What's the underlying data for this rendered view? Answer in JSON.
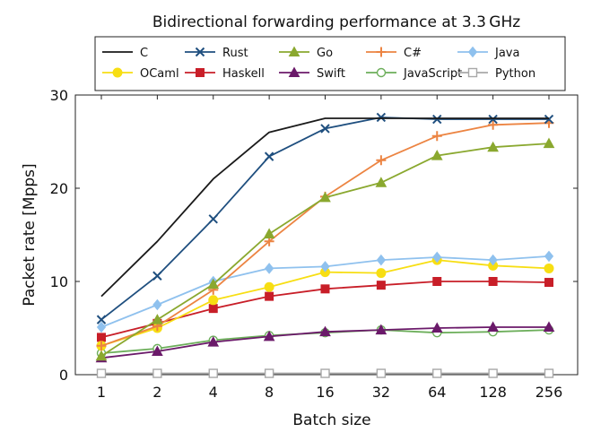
{
  "chart_data": {
    "type": "line",
    "title": "Bidirectional forwarding performance at 3.3 GHz",
    "xlabel": "Batch size",
    "ylabel": "Packet rate [Mpps]",
    "categories": [
      "1",
      "2",
      "4",
      "8",
      "16",
      "32",
      "64",
      "128",
      "256"
    ],
    "ylim": [
      0,
      30
    ],
    "yticks": [
      0,
      10,
      20,
      30
    ],
    "grid": false,
    "legend_position": "top",
    "series": [
      {
        "name": "C",
        "color": "#1a1a1a",
        "marker": "none",
        "values": [
          8.4,
          14.3,
          21.0,
          26.0,
          27.5,
          27.5,
          27.5,
          27.5,
          27.5
        ]
      },
      {
        "name": "Rust",
        "color": "#1f4f7f",
        "marker": "x",
        "values": [
          5.9,
          10.6,
          16.7,
          23.4,
          26.4,
          27.6,
          27.4,
          27.4,
          27.4
        ]
      },
      {
        "name": "Go",
        "color": "#8aa82f",
        "marker": "triangle-up",
        "values": [
          2.0,
          5.9,
          9.7,
          15.1,
          19.0,
          20.6,
          23.5,
          24.4,
          24.8
        ]
      },
      {
        "name": "C#",
        "color": "#ec8442",
        "marker": "plus",
        "values": [
          3.1,
          5.2,
          9.1,
          14.3,
          19.1,
          23.0,
          25.6,
          26.8,
          27.0
        ]
      },
      {
        "name": "Java",
        "color": "#8fc1ee",
        "marker": "diamond",
        "values": [
          5.1,
          7.5,
          10.0,
          11.4,
          11.6,
          12.3,
          12.6,
          12.3,
          12.7
        ]
      },
      {
        "name": "OCaml",
        "color": "#f7de13",
        "marker": "circle",
        "values": [
          3.1,
          5.0,
          8.0,
          9.4,
          11.0,
          10.9,
          12.3,
          11.7,
          11.4
        ]
      },
      {
        "name": "Haskell",
        "color": "#c81e28",
        "marker": "square",
        "values": [
          4.0,
          5.5,
          7.1,
          8.4,
          9.2,
          9.6,
          10.0,
          10.0,
          9.9
        ]
      },
      {
        "name": "Swift",
        "color": "#6b1a6a",
        "marker": "triangle-up",
        "values": [
          1.8,
          2.5,
          3.5,
          4.1,
          4.6,
          4.8,
          5.0,
          5.1,
          5.1
        ]
      },
      {
        "name": "JavaScript",
        "color": "#6cae5a",
        "marker": "circle-open",
        "values": [
          2.3,
          2.8,
          3.7,
          4.2,
          4.5,
          4.8,
          4.5,
          4.6,
          4.8
        ]
      },
      {
        "name": "Python",
        "color": "#a8a8a8",
        "marker": "square-open",
        "values": [
          0.14,
          0.14,
          0.14,
          0.14,
          0.14,
          0.14,
          0.14,
          0.14,
          0.14
        ]
      }
    ]
  }
}
